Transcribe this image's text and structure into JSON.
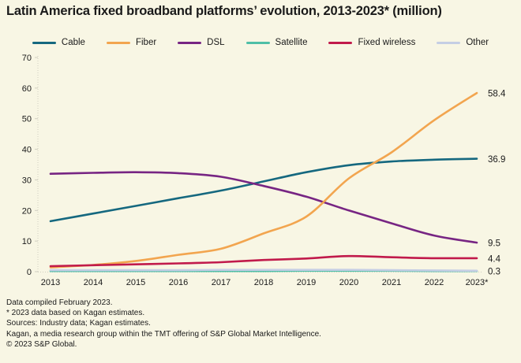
{
  "title": "Latin America fixed broadband platforms’ evolution, 2013-2023* (million)",
  "colors": {
    "background": "#f8f6e4",
    "text": "#1a1a1a",
    "axis": "#d0cec0"
  },
  "chart_data": {
    "type": "line",
    "title": "Latin America fixed broadband platforms’ evolution, 2013-2023* (million)",
    "categories": [
      "2013",
      "2014",
      "2015",
      "2016",
      "2017",
      "2018",
      "2019",
      "2020",
      "2021",
      "2022",
      "2023*"
    ],
    "ylabel": "",
    "xlabel": "",
    "ylim": [
      0,
      70
    ],
    "yticks": [
      0,
      10,
      20,
      30,
      40,
      50,
      60,
      70
    ],
    "grid": false,
    "legend_position": "top",
    "series": [
      {
        "name": "Cable",
        "color": "#15687f",
        "end_label": "36.9",
        "values": [
          16.5,
          19.0,
          21.5,
          24.0,
          26.5,
          29.5,
          32.5,
          34.8,
          36.0,
          36.6,
          36.9
        ]
      },
      {
        "name": "Fiber",
        "color": "#f2a54f",
        "end_label": "58.4",
        "values": [
          1.4,
          2.2,
          3.5,
          5.5,
          7.5,
          12.5,
          18.0,
          30.5,
          39.0,
          49.5,
          58.4
        ]
      },
      {
        "name": "DSL",
        "color": "#772583",
        "end_label": "9.5",
        "values": [
          32.0,
          32.3,
          32.5,
          32.2,
          31.0,
          28.0,
          24.5,
          20.0,
          15.8,
          11.8,
          9.5
        ]
      },
      {
        "name": "Satellite",
        "color": "#4fbfa7",
        "end_label": "",
        "values": [
          0.2,
          0.2,
          0.2,
          0.2,
          0.2,
          0.2,
          0.3,
          0.3,
          0.3,
          0.2,
          0.2
        ]
      },
      {
        "name": "Fixed wireless",
        "color": "#c11a4b",
        "end_label": "4.4",
        "values": [
          1.8,
          2.1,
          2.4,
          2.7,
          3.1,
          3.8,
          4.3,
          5.1,
          4.7,
          4.4,
          4.4
        ]
      },
      {
        "name": "Other",
        "color": "#c5cee4",
        "end_label": "0.3",
        "values": [
          0.5,
          0.5,
          0.5,
          0.5,
          0.6,
          0.6,
          0.6,
          0.6,
          0.5,
          0.4,
          0.3
        ]
      }
    ]
  },
  "footer": {
    "lines": [
      "Data compiled February 2023.",
      "* 2023 data based on Kagan estimates.",
      "Sources: Industry data; Kagan estimates.",
      "Kagan, a media research group within the TMT offering of S&P Global Market Intelligence.",
      "© 2023 S&P Global."
    ]
  }
}
